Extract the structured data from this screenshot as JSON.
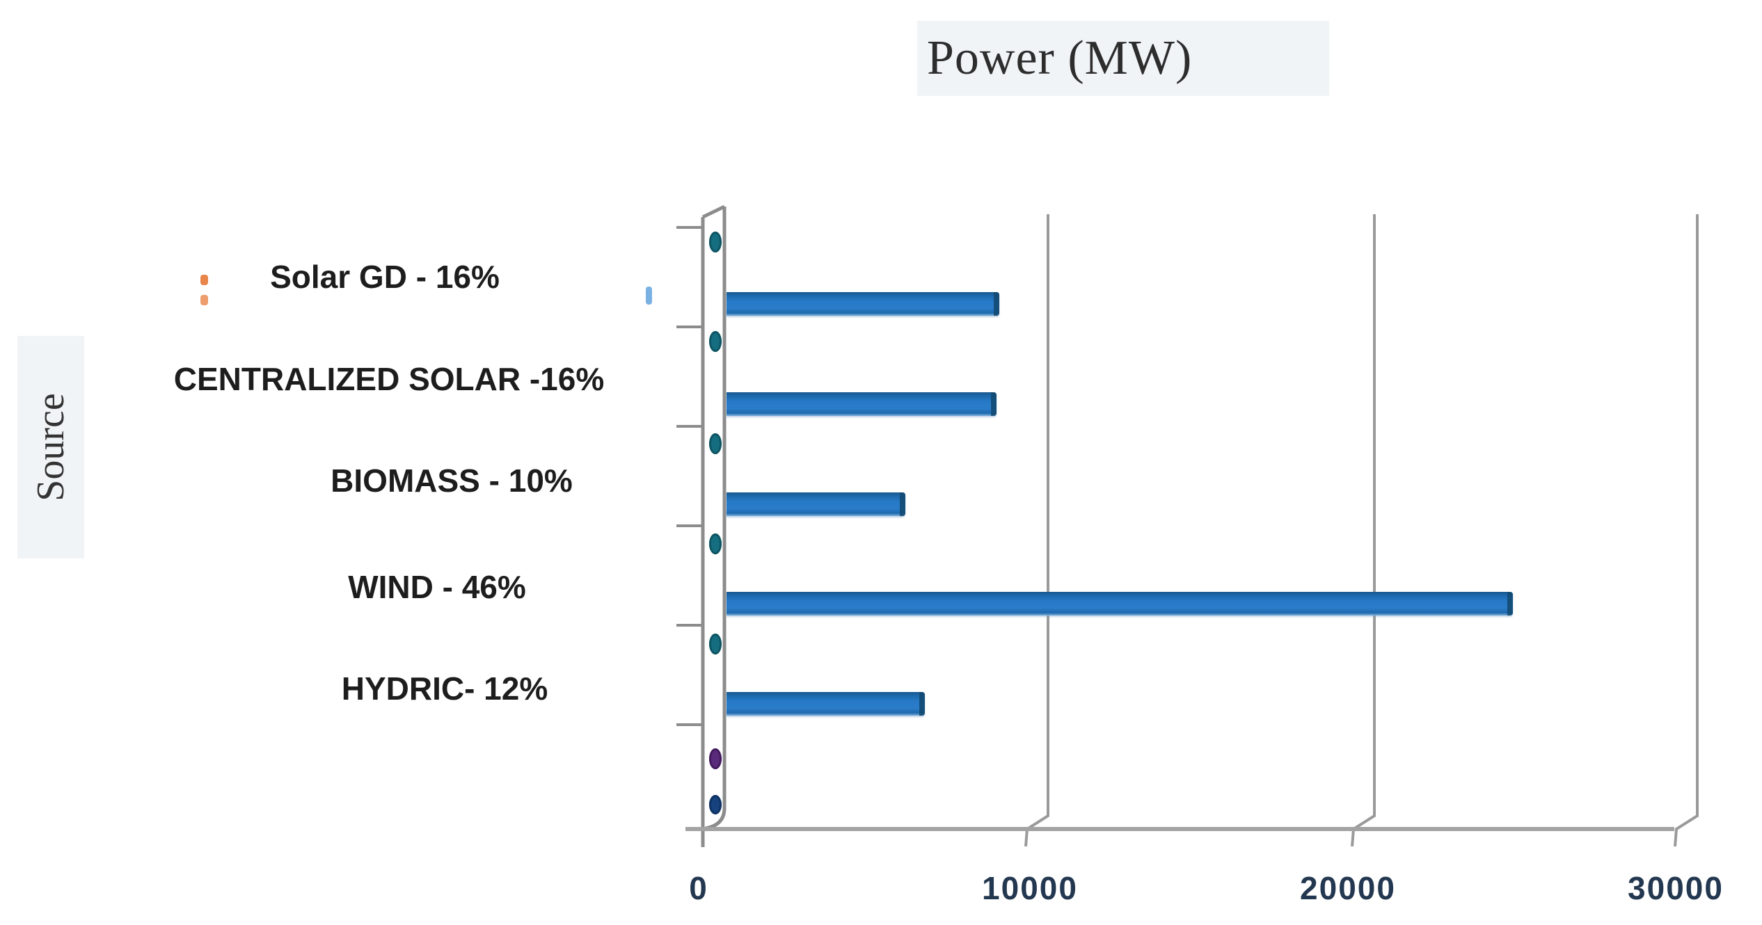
{
  "chart_data": {
    "type": "bar",
    "orientation": "horizontal",
    "style": "3d-excel",
    "title": "Power (MW)",
    "xlabel": "",
    "ylabel": "Source",
    "categories": [
      "Solar GD - 16%",
      "CENTRALIZED SOLAR -16%",
      "BIOMASS - 10%",
      "WIND - 46%",
      "HYDRIC- 12%"
    ],
    "values": [
      8400,
      8300,
      5500,
      24200,
      6100
    ],
    "percentages": [
      16,
      16,
      10,
      46,
      12
    ],
    "x_ticks": [
      "0",
      "10000",
      "20000",
      "30000"
    ],
    "xlim": [
      0,
      30000
    ],
    "grid": true,
    "legend": "none",
    "colors": {
      "bar_fill": "#2679c6",
      "bar_edge": "#12486f",
      "axis_line": "#8c8c8c",
      "gridline": "#9a9a9a",
      "tick_label": "#233850",
      "category_label": "#1d1d1d",
      "title_text": "#2d2d2d",
      "title_background": "#f1f4f7",
      "marker_teal": "#156d80",
      "marker_purple": "#5a2a7a",
      "marker_navy": "#16437e",
      "stray_orange": "#e8854a",
      "stray_blue": "#7ab1e3"
    }
  }
}
